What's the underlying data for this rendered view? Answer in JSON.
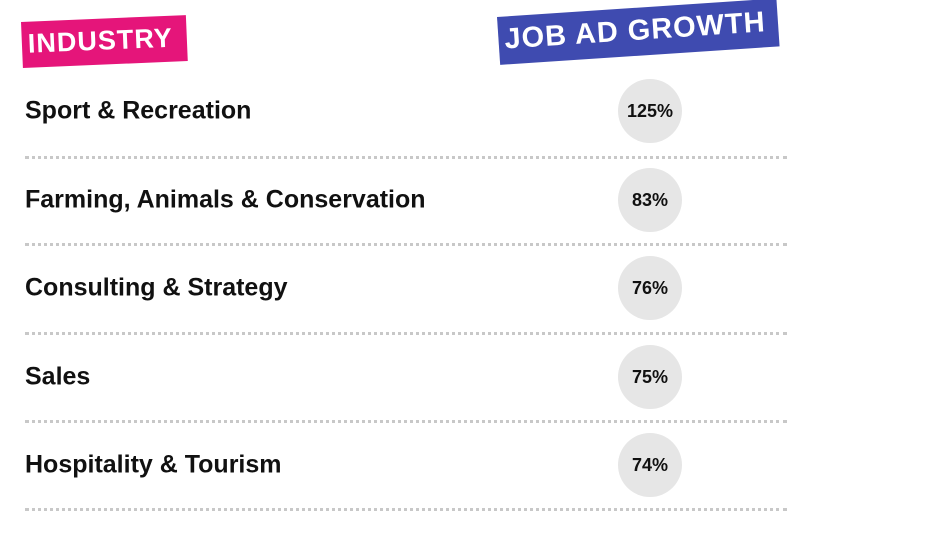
{
  "headers": {
    "industry": "INDUSTRY",
    "growth": "JOB AD GROWTH",
    "industry_color": "#e5157a",
    "growth_color": "#3f4bb0"
  },
  "badge_color": "#e6e6e6",
  "chart_data": {
    "type": "table",
    "columns": [
      "INDUSTRY",
      "JOB AD GROWTH"
    ],
    "rows": [
      {
        "label": "Sport & Recreation",
        "value": 125,
        "display": "125%"
      },
      {
        "label": "Farming, Animals & Conservation",
        "value": 83,
        "display": "83%"
      },
      {
        "label": "Consulting & Strategy",
        "value": 76,
        "display": "76%"
      },
      {
        "label": "Sales",
        "value": 75,
        "display": "75%"
      },
      {
        "label": "Hospitality & Tourism",
        "value": 74,
        "display": "74%"
      }
    ]
  }
}
